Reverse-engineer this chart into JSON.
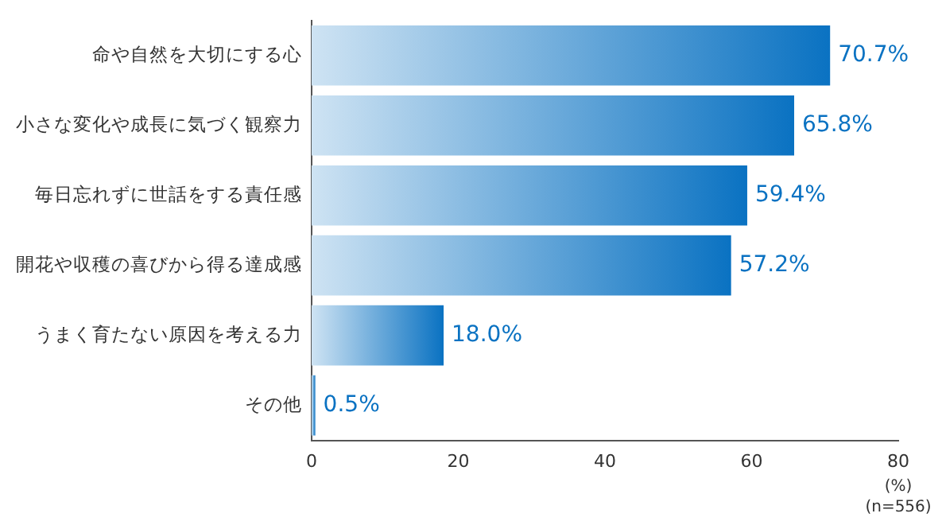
{
  "chart_data": {
    "type": "bar",
    "orientation": "horizontal",
    "categories": [
      "命や自然を大切にする心",
      "小さな変化や成長に気づく観察力",
      "毎日忘れずに世話をする責任感",
      "開花や収穫の喜びから得る達成感",
      "うまく育たない原因を考える力",
      "その他"
    ],
    "values": [
      70.7,
      65.8,
      59.4,
      57.2,
      18.0,
      0.5
    ],
    "value_labels": [
      "70.7%",
      "65.8%",
      "59.4%",
      "57.2%",
      "18.0%",
      "0.5%"
    ],
    "color": "#0a72c2",
    "xlim": [
      0,
      80
    ],
    "xticks": [
      0,
      20,
      40,
      60,
      80
    ],
    "xlabel": "(%)",
    "annotations": [
      "(n=556)"
    ],
    "grid": false,
    "legend": false
  }
}
